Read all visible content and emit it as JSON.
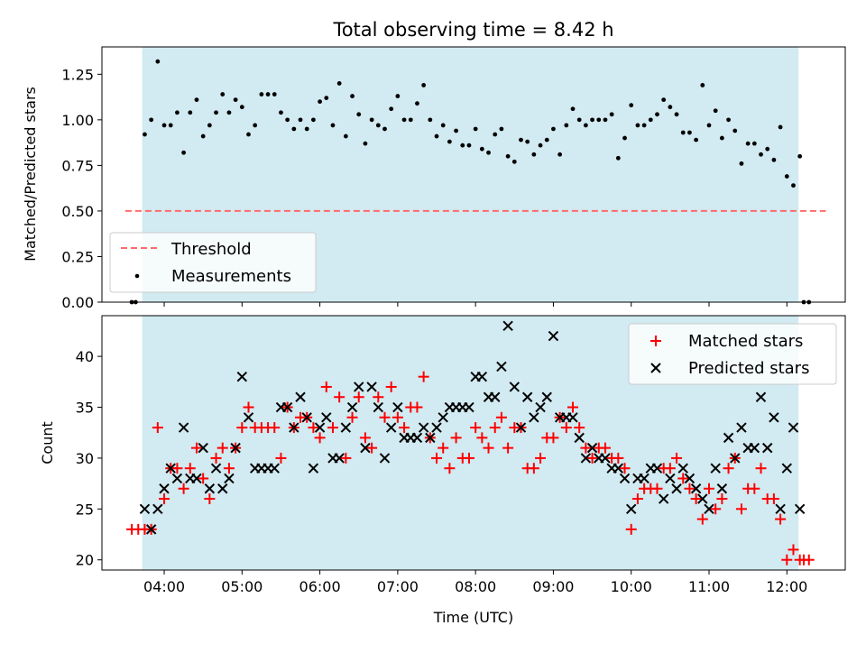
{
  "chart_data": [
    {
      "type": "scatter",
      "title": "Total observing time = 8.42 h",
      "xlabel": "",
      "ylabel": "Matched/Predicted stars",
      "xlim": [
        "03:12",
        "12:45"
      ],
      "ylim": [
        0,
        1.4
      ],
      "y_ticks": [
        "0.00",
        "0.25",
        "0.50",
        "0.75",
        "1.00",
        "1.25"
      ],
      "x_tick_labels_visible": false,
      "grid": false,
      "legend_position": "lower-left",
      "observing_window": [
        "03:43",
        "12:09"
      ],
      "colors": {
        "window": "#add8e6",
        "threshold": "#ff6b6b",
        "points": "#000000"
      },
      "series": [
        {
          "name": "Threshold",
          "style": "dashed-line",
          "x": [
            "03:30",
            "12:30"
          ],
          "values": [
            0.5,
            0.5
          ]
        },
        {
          "name": "Measurements",
          "style": "dots",
          "x": [
            "03:35",
            "03:38",
            "03:45",
            "03:50",
            "03:55",
            "04:00",
            "04:05",
            "04:10",
            "04:15",
            "04:20",
            "04:25",
            "04:30",
            "04:35",
            "04:40",
            "04:45",
            "04:50",
            "04:55",
            "05:00",
            "05:05",
            "05:10",
            "05:15",
            "05:20",
            "05:25",
            "05:30",
            "05:35",
            "05:40",
            "05:45",
            "05:50",
            "05:55",
            "06:00",
            "06:05",
            "06:10",
            "06:15",
            "06:20",
            "06:25",
            "06:30",
            "06:35",
            "06:40",
            "06:45",
            "06:50",
            "06:55",
            "07:00",
            "07:05",
            "07:10",
            "07:15",
            "07:20",
            "07:25",
            "07:30",
            "07:35",
            "07:40",
            "07:45",
            "07:50",
            "07:55",
            "08:00",
            "08:05",
            "08:10",
            "08:15",
            "08:20",
            "08:25",
            "08:30",
            "08:35",
            "08:40",
            "08:45",
            "08:50",
            "08:55",
            "09:00",
            "09:05",
            "09:10",
            "09:15",
            "09:20",
            "09:25",
            "09:30",
            "09:35",
            "09:40",
            "09:45",
            "09:50",
            "09:55",
            "10:00",
            "10:05",
            "10:10",
            "10:15",
            "10:20",
            "10:25",
            "10:30",
            "10:35",
            "10:40",
            "10:45",
            "10:50",
            "10:55",
            "11:00",
            "11:05",
            "11:10",
            "11:15",
            "11:20",
            "11:25",
            "11:30",
            "11:35",
            "11:40",
            "11:45",
            "11:50",
            "11:55",
            "12:00",
            "12:05",
            "12:10",
            "12:13",
            "12:17"
          ],
          "values": [
            0.0,
            0.0,
            0.92,
            1.0,
            1.32,
            0.97,
            0.97,
            1.04,
            0.82,
            1.04,
            1.11,
            0.91,
            0.97,
            1.04,
            1.14,
            1.04,
            1.11,
            1.07,
            0.92,
            0.97,
            1.14,
            1.14,
            1.14,
            1.04,
            1.0,
            0.95,
            1.0,
            0.95,
            1.0,
            1.1,
            1.12,
            0.97,
            1.2,
            0.91,
            1.13,
            1.03,
            0.87,
            1.0,
            0.97,
            0.95,
            1.06,
            1.13,
            1.0,
            1.0,
            1.09,
            1.19,
            1.0,
            0.91,
            0.97,
            0.88,
            0.94,
            0.86,
            0.86,
            0.95,
            0.84,
            0.82,
            0.92,
            0.95,
            0.8,
            0.77,
            0.89,
            0.88,
            0.81,
            0.86,
            0.89,
            0.95,
            0.81,
            0.97,
            1.06,
            1.0,
            0.97,
            1.0,
            1.0,
            1.0,
            1.03,
            0.79,
            0.9,
            1.08,
            0.97,
            0.97,
            1.0,
            1.03,
            1.11,
            1.07,
            1.03,
            0.93,
            0.93,
            0.89,
            1.19,
            0.97,
            1.05,
            0.9,
            1.0,
            0.94,
            0.76,
            0.87,
            0.87,
            0.81,
            0.84,
            0.78,
            0.96,
            0.69,
            0.64,
            0.8,
            0.0,
            0.0
          ]
        }
      ]
    },
    {
      "type": "scatter",
      "title": "",
      "xlabel": "Time (UTC)",
      "ylabel": "Count",
      "xlim": [
        "03:12",
        "12:45"
      ],
      "ylim": [
        19,
        44
      ],
      "x_ticks": [
        "04:00",
        "05:00",
        "06:00",
        "07:00",
        "08:00",
        "09:00",
        "10:00",
        "11:00",
        "12:00"
      ],
      "y_ticks": [
        "20",
        "25",
        "30",
        "35",
        "40"
      ],
      "grid": false,
      "legend_position": "upper-right",
      "observing_window": [
        "03:43",
        "12:09"
      ],
      "colors": {
        "window": "#add8e6",
        "matched": "#ff0000",
        "predicted": "#000000"
      },
      "series": [
        {
          "name": "Matched stars",
          "marker": "plus",
          "x": [
            "03:35",
            "03:40",
            "03:45",
            "03:50",
            "03:55",
            "04:00",
            "04:05",
            "04:10",
            "04:15",
            "04:20",
            "04:25",
            "04:30",
            "04:35",
            "04:40",
            "04:45",
            "04:50",
            "04:55",
            "05:00",
            "05:05",
            "05:10",
            "05:15",
            "05:20",
            "05:25",
            "05:30",
            "05:35",
            "05:40",
            "05:45",
            "05:50",
            "05:55",
            "06:00",
            "06:05",
            "06:10",
            "06:15",
            "06:20",
            "06:25",
            "06:30",
            "06:35",
            "06:40",
            "06:45",
            "06:50",
            "06:55",
            "07:00",
            "07:05",
            "07:10",
            "07:15",
            "07:20",
            "07:25",
            "07:30",
            "07:35",
            "07:40",
            "07:45",
            "07:50",
            "07:55",
            "08:00",
            "08:05",
            "08:10",
            "08:15",
            "08:20",
            "08:25",
            "08:30",
            "08:35",
            "08:40",
            "08:45",
            "08:50",
            "08:55",
            "09:00",
            "09:05",
            "09:10",
            "09:15",
            "09:20",
            "09:25",
            "09:30",
            "09:35",
            "09:40",
            "09:45",
            "09:50",
            "09:55",
            "10:00",
            "10:05",
            "10:10",
            "10:15",
            "10:20",
            "10:25",
            "10:30",
            "10:35",
            "10:40",
            "10:45",
            "10:50",
            "10:55",
            "11:00",
            "11:05",
            "11:10",
            "11:15",
            "11:20",
            "11:25",
            "11:30",
            "11:35",
            "11:40",
            "11:45",
            "11:50",
            "11:55",
            "12:00",
            "12:05",
            "12:10",
            "12:13",
            "12:17"
          ],
          "values": [
            23,
            23,
            23,
            23,
            33,
            26,
            29,
            29,
            27,
            29,
            31,
            28,
            26,
            30,
            31,
            29,
            31,
            33,
            35,
            33,
            33,
            33,
            33,
            30,
            35,
            33,
            34,
            34,
            33,
            32,
            37,
            33,
            36,
            30,
            34,
            36,
            32,
            31,
            36,
            34,
            37,
            34,
            33,
            35,
            35,
            38,
            32,
            30,
            31,
            29,
            32,
            30,
            30,
            33,
            32,
            31,
            33,
            34,
            31,
            33,
            33,
            29,
            29,
            30,
            32,
            32,
            34,
            33,
            35,
            33,
            31,
            30,
            31,
            31,
            30,
            30,
            29,
            23,
            26,
            27,
            27,
            27,
            29,
            29,
            30,
            28,
            27,
            26,
            24,
            27,
            25,
            26,
            29,
            30,
            25,
            27,
            27,
            29,
            26,
            26,
            24,
            20,
            21,
            20,
            20,
            20
          ]
        },
        {
          "name": "Predicted stars",
          "marker": "x",
          "x": [
            "03:45",
            "03:50",
            "03:55",
            "04:00",
            "04:05",
            "04:10",
            "04:15",
            "04:20",
            "04:25",
            "04:30",
            "04:35",
            "04:40",
            "04:45",
            "04:50",
            "04:55",
            "05:00",
            "05:05",
            "05:10",
            "05:15",
            "05:20",
            "05:25",
            "05:30",
            "05:35",
            "05:40",
            "05:45",
            "05:50",
            "05:55",
            "06:00",
            "06:05",
            "06:10",
            "06:15",
            "06:20",
            "06:25",
            "06:30",
            "06:35",
            "06:40",
            "06:45",
            "06:50",
            "06:55",
            "07:00",
            "07:05",
            "07:10",
            "07:15",
            "07:20",
            "07:25",
            "07:30",
            "07:35",
            "07:40",
            "07:45",
            "07:50",
            "07:55",
            "08:00",
            "08:05",
            "08:10",
            "08:15",
            "08:20",
            "08:25",
            "08:30",
            "08:35",
            "08:40",
            "08:45",
            "08:50",
            "08:55",
            "09:00",
            "09:05",
            "09:10",
            "09:15",
            "09:20",
            "09:25",
            "09:30",
            "09:35",
            "09:40",
            "09:45",
            "09:50",
            "09:55",
            "10:00",
            "10:05",
            "10:10",
            "10:15",
            "10:20",
            "10:25",
            "10:30",
            "10:35",
            "10:40",
            "10:45",
            "10:50",
            "10:55",
            "11:00",
            "11:05",
            "11:10",
            "11:15",
            "11:20",
            "11:25",
            "11:30",
            "11:35",
            "11:40",
            "11:45",
            "11:50",
            "11:55",
            "12:00",
            "12:05",
            "12:10"
          ],
          "values": [
            25,
            23,
            25,
            27,
            29,
            28,
            33,
            28,
            28,
            31,
            27,
            29,
            27,
            28,
            31,
            38,
            34,
            29,
            29,
            29,
            29,
            35,
            35,
            33,
            36,
            34,
            29,
            33,
            34,
            30,
            30,
            33,
            35,
            37,
            31,
            37,
            35,
            30,
            33,
            35,
            32,
            32,
            32,
            33,
            32,
            33,
            34,
            35,
            35,
            35,
            35,
            38,
            38,
            36,
            36,
            39,
            43,
            37,
            33,
            36,
            34,
            35,
            36,
            42,
            34,
            34,
            34,
            32,
            30,
            31,
            30,
            30,
            29,
            29,
            28,
            25,
            28,
            28,
            29,
            29,
            26,
            28,
            27,
            29,
            28,
            27,
            26,
            25,
            29,
            27,
            32,
            30,
            33,
            31,
            31,
            36,
            31,
            34,
            25,
            29,
            33,
            25
          ]
        }
      ]
    }
  ]
}
